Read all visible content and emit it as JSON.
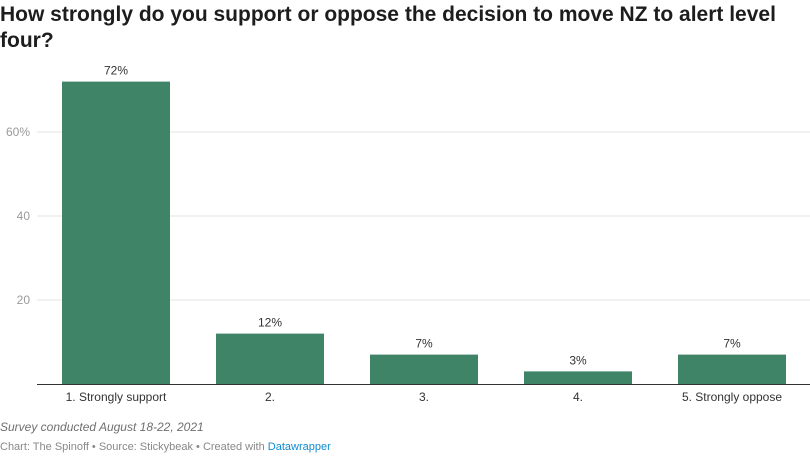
{
  "chart_data": {
    "type": "bar",
    "title": "How strongly do you support or oppose the decision to move NZ to alert level four?",
    "categories": [
      "1. Strongly support",
      "2.",
      "3.",
      "4.",
      "5. Strongly oppose"
    ],
    "values": [
      72,
      12,
      7,
      3,
      7
    ],
    "value_labels": [
      "72%",
      "12%",
      "7%",
      "3%",
      "7%"
    ],
    "yticks": [
      20,
      40,
      60
    ],
    "ytick_labels": [
      "20",
      "40",
      "60%"
    ],
    "ylim": [
      0,
      72
    ],
    "xlabel": "",
    "ylabel": "",
    "grid": true,
    "bar_color": "#3f8467"
  },
  "notes": "Survey conducted August 18-22, 2021",
  "byline": {
    "prefix": "Chart: The Spinoff • Source: Stickybeak • Created with ",
    "link": "Datawrapper"
  }
}
